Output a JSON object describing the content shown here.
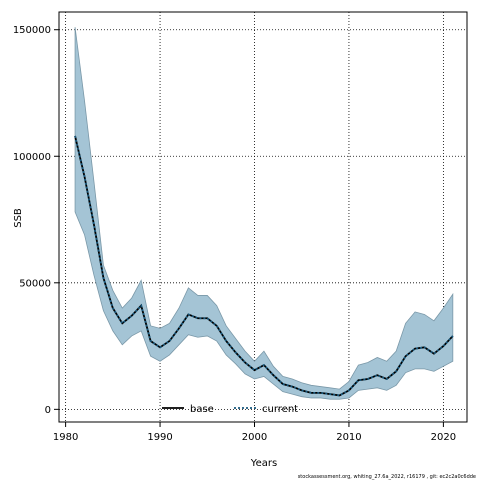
{
  "chart_data": {
    "type": "line",
    "title": "",
    "xlabel": "Years",
    "ylabel": "SSB",
    "xlim": [
      1979.3,
      2022.5
    ],
    "ylim": [
      -5000,
      157000
    ],
    "xticks": [
      1980,
      1990,
      2000,
      2010,
      2020
    ],
    "yticks": [
      0,
      50000,
      100000,
      150000
    ],
    "grid": true,
    "legend_position": "bottom-center",
    "band_color": "#a4c4d5",
    "band_edge_color": "#7a98a8",
    "x": [
      1981,
      1982,
      1983,
      1984,
      1985,
      1986,
      1987,
      1988,
      1989,
      1990,
      1991,
      1992,
      1993,
      1994,
      1995,
      1996,
      1997,
      1998,
      1999,
      2000,
      2001,
      2002,
      2003,
      2004,
      2005,
      2006,
      2007,
      2008,
      2009,
      2010,
      2011,
      2012,
      2013,
      2014,
      2015,
      2016,
      2017,
      2018,
      2019,
      2020,
      2021
    ],
    "series": [
      {
        "name": "base",
        "color": "#000000",
        "line_style": "solid",
        "values": [
          108000,
          92000,
          73000,
          52000,
          40000,
          34000,
          37000,
          41000,
          27000,
          24500,
          27000,
          32000,
          37500,
          36000,
          36000,
          33000,
          27000,
          22500,
          18500,
          15500,
          17500,
          13500,
          10000,
          9000,
          7500,
          6500,
          6500,
          6000,
          5500,
          7500,
          11500,
          12000,
          13500,
          12000,
          15000,
          21000,
          24000,
          24500,
          22000,
          25000,
          29000
        ]
      },
      {
        "name": "current",
        "color": "#1a5a7e",
        "line_style": "dotted",
        "values": [
          108000,
          92000,
          73000,
          52000,
          40000,
          34000,
          37000,
          41000,
          27000,
          24500,
          27000,
          32000,
          37500,
          36000,
          36000,
          33000,
          27000,
          22500,
          18500,
          15500,
          17500,
          13500,
          10000,
          9000,
          7500,
          6500,
          6500,
          6000,
          5500,
          7500,
          11500,
          12000,
          13500,
          12000,
          15000,
          21000,
          24000,
          24500,
          22000,
          25000,
          29000
        ]
      }
    ],
    "band_upper": [
      151000,
      122000,
      90000,
      57000,
      47000,
      40000,
      44000,
      51000,
      33000,
      32000,
      34000,
      40000,
      48000,
      45000,
      45000,
      41000,
      33000,
      28000,
      23000,
      19000,
      23000,
      17000,
      13000,
      12000,
      10500,
      9500,
      9000,
      8500,
      8000,
      11000,
      17500,
      18500,
      20500,
      19000,
      23000,
      34000,
      38500,
      37500,
      35000,
      40000,
      45500
    ],
    "band_lower": [
      78000,
      69000,
      53000,
      39000,
      31000,
      25500,
      29000,
      31000,
      21000,
      19000,
      21500,
      25500,
      29500,
      28500,
      29000,
      27000,
      21500,
      18000,
      14000,
      12000,
      13000,
      10000,
      7000,
      6000,
      5000,
      4500,
      4500,
      4000,
      4000,
      4500,
      7500,
      8000,
      8500,
      7500,
      9500,
      14500,
      16000,
      16000,
      15000,
      17000,
      19000
    ],
    "footnote": "stockassessment.org,  whiting_27.6a_2022,  r16179 ,  git:  ec2c2a0c6dde"
  }
}
